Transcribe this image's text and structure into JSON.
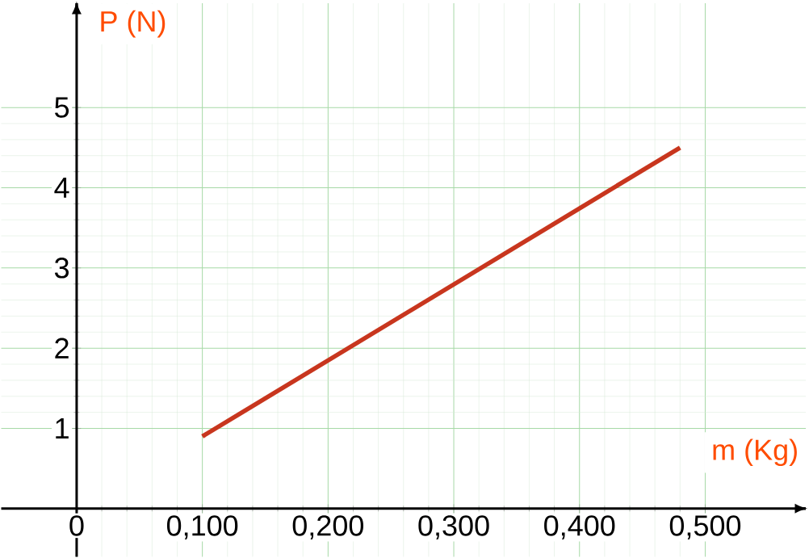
{
  "chart_data": {
    "type": "line",
    "xlabel": "m (Kg)",
    "ylabel": "P (N)",
    "x": [
      0.1,
      0.48
    ],
    "series": [
      {
        "color": "#c8361e",
        "values": [
          0.9,
          4.5
        ]
      }
    ],
    "xlim": [
      -0.06,
      0.58
    ],
    "ylim": [
      -0.6,
      6.3
    ],
    "xticks": [
      {
        "value": 0,
        "label": "0"
      },
      {
        "value": 0.1,
        "label": "0,100"
      },
      {
        "value": 0.2,
        "label": "0,200"
      },
      {
        "value": 0.3,
        "label": "0,300"
      },
      {
        "value": 0.4,
        "label": "0,400"
      },
      {
        "value": 0.5,
        "label": "0,500"
      }
    ],
    "yticks": [
      1,
      2,
      3,
      4,
      5
    ],
    "grid": true,
    "marker": "none",
    "line_style": "solid"
  }
}
